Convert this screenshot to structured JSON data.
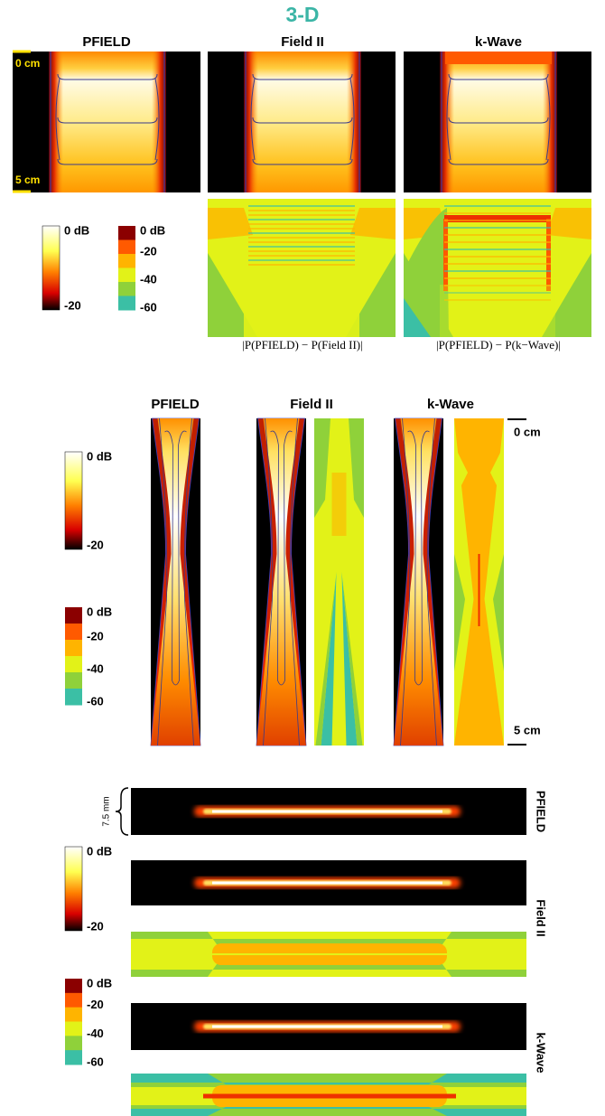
{
  "title": "3-D",
  "panel1": {
    "columns": [
      "PFIELD",
      "Field II",
      "k-Wave"
    ],
    "depth_labels": [
      "0 cm",
      "5 cm"
    ],
    "colorbar_continuous": [
      "0 dB",
      "-20"
    ],
    "colorbar_discrete": [
      "0 dB",
      "-20",
      "-40",
      "-60"
    ],
    "captions": [
      "|P(PFIELD) − P(Field II)|",
      "|P(PFIELD) − P(k−Wave)|"
    ]
  },
  "panel2": {
    "columns": [
      "PFIELD",
      "Field II",
      "k-Wave"
    ],
    "depth_labels": [
      "0 cm",
      "5 cm"
    ],
    "colorbar_continuous": [
      "0 dB",
      "-20"
    ],
    "colorbar_discrete": [
      "0 dB",
      "-20",
      "-40",
      "-60"
    ]
  },
  "panel3": {
    "rows": [
      "PFIELD",
      "Field II",
      "k-Wave"
    ],
    "width_label": "7.5 mm",
    "colorbar_continuous": [
      "0 dB",
      "-20"
    ],
    "colorbar_discrete": [
      "0 dB",
      "-20",
      "-40",
      "-60"
    ]
  }
}
